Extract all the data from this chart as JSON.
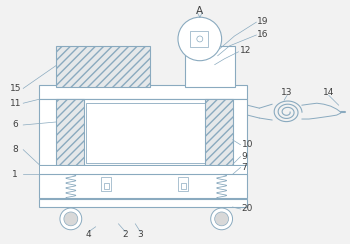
{
  "bg_color": "#f2f2f2",
  "line_color": "#8aaabf",
  "hatch_color": "#aabccc",
  "label_color": "#404040",
  "fig_w": 3.5,
  "fig_h": 2.44,
  "dpi": 100
}
